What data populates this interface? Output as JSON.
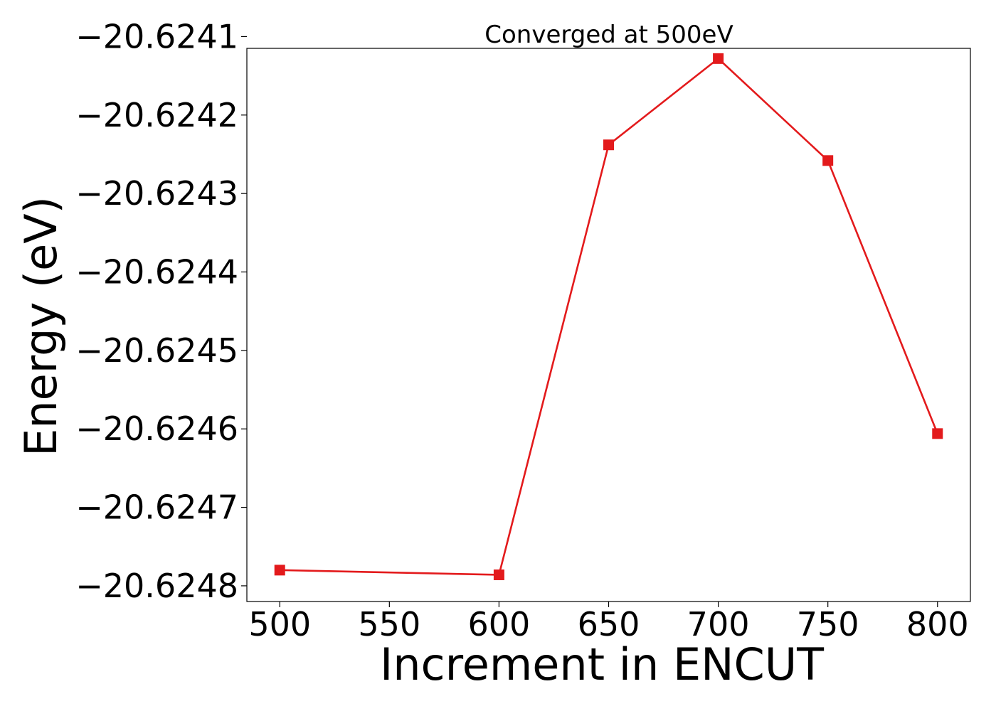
{
  "chart_data": {
    "type": "line",
    "title": "Converged at 500eV",
    "xlabel": "Increment in ENCUT",
    "ylabel": "Energy (eV)",
    "x": [
      500,
      600,
      650,
      700,
      750,
      800
    ],
    "series": [
      {
        "values": [
          -20.62478,
          -20.624786,
          -20.624238,
          -20.624128,
          -20.624258,
          -20.624606
        ],
        "color": "#e31a1c",
        "marker": "square"
      }
    ],
    "xlim": [
      485,
      815
    ],
    "ylim": [
      -20.62482,
      -20.624115
    ],
    "xticks": [
      500,
      550,
      600,
      650,
      700,
      750,
      800
    ],
    "xtick_labels": [
      "500",
      "550",
      "600",
      "650",
      "700",
      "750",
      "800"
    ],
    "yticks": [
      -20.6241,
      -20.6242,
      -20.6243,
      -20.6244,
      -20.6245,
      -20.6246,
      -20.6247,
      -20.6248
    ],
    "ytick_labels": [
      "−20.6241",
      "−20.6242",
      "−20.6243",
      "−20.6244",
      "−20.6245",
      "−20.6246",
      "−20.6247",
      "−20.6248"
    ],
    "grid": false,
    "legend": "none"
  }
}
